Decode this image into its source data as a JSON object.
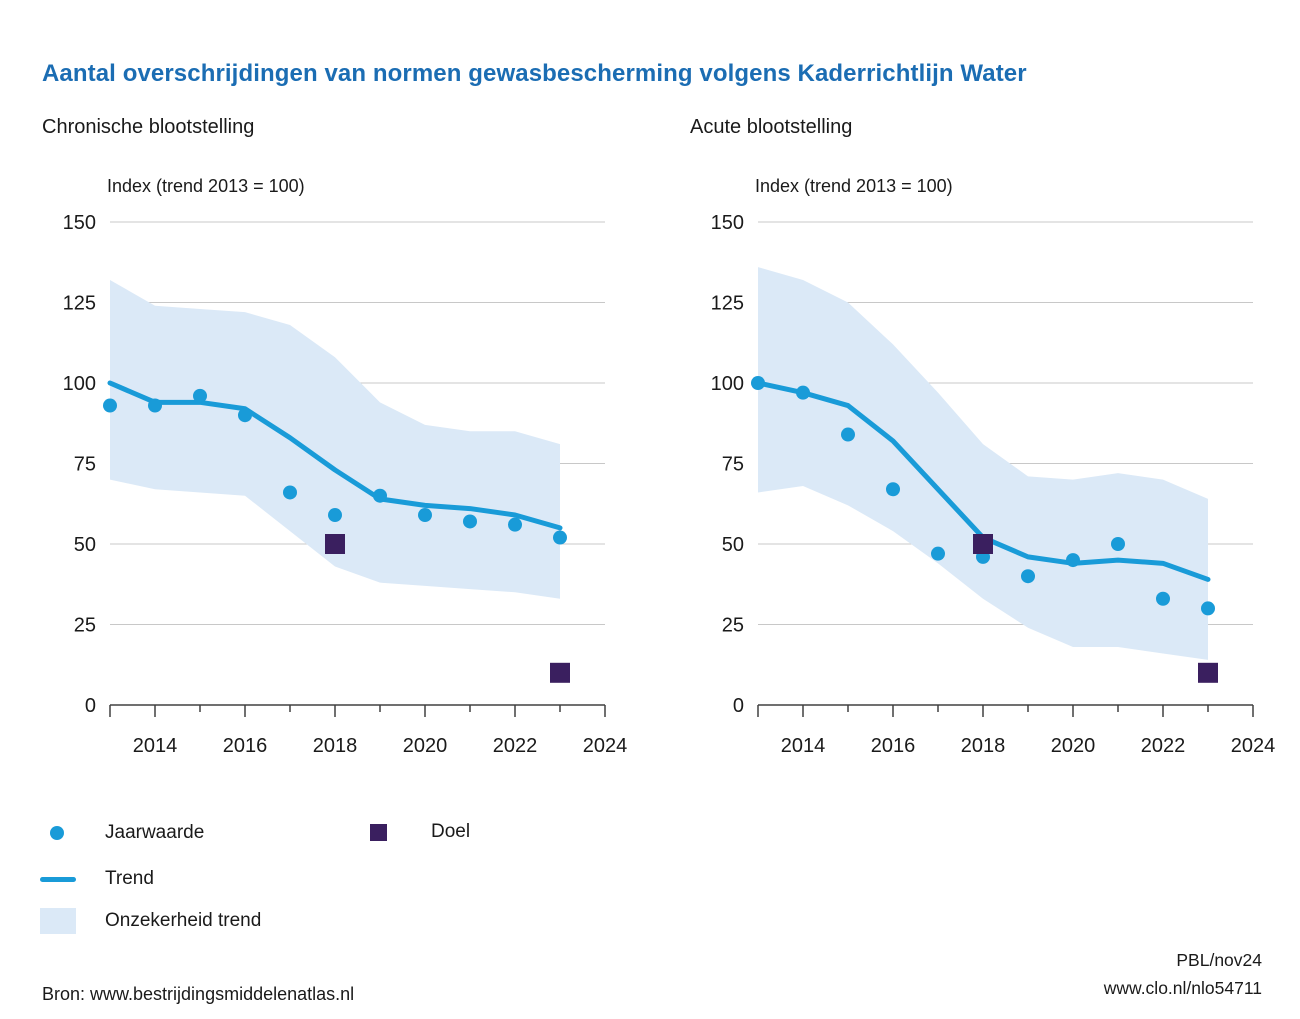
{
  "title": "Aantal overschrijdingen van normen gewasbescherming volgens Kaderrichtlijn Water",
  "colors": {
    "title": "#1b6db3",
    "series_blue": "#199bd8",
    "band": "#dbe9f7",
    "doel": "#3a1f5f",
    "text": "#1a1a1a",
    "grid": "#c8c8c8",
    "axis": "#404040"
  },
  "chart_data": [
    {
      "type": "line",
      "subtitle": "Chronische blootstelling",
      "ylabel": "Index (trend 2013 = 100)",
      "x": [
        2013,
        2014,
        2015,
        2016,
        2017,
        2018,
        2019,
        2020,
        2021,
        2022,
        2023
      ],
      "xlim": [
        2013,
        2024
      ],
      "ylim": [
        0,
        150
      ],
      "yticks": [
        0,
        25,
        50,
        75,
        100,
        125,
        150
      ],
      "xtick_labels": [
        2014,
        2016,
        2018,
        2020,
        2022,
        2024
      ],
      "grid": true,
      "series": [
        {
          "name": "Jaarwaarde",
          "type": "scatter",
          "values": [
            93,
            93,
            96,
            90,
            66,
            59,
            65,
            59,
            57,
            56,
            52
          ]
        },
        {
          "name": "Trend",
          "type": "line",
          "values": [
            100,
            94,
            94,
            92,
            83,
            73,
            64,
            62,
            61,
            59,
            55
          ]
        },
        {
          "name": "Onzekerheid trend",
          "type": "band",
          "upper": [
            132,
            124,
            123,
            122,
            118,
            108,
            94,
            87,
            85,
            85,
            81
          ],
          "lower": [
            70,
            67,
            66,
            65,
            54,
            43,
            38,
            37,
            36,
            35,
            33
          ]
        },
        {
          "name": "Doel",
          "type": "scatter_square",
          "points": [
            {
              "x": 2018,
              "y": 50
            },
            {
              "x": 2023,
              "y": 10
            }
          ]
        }
      ]
    },
    {
      "type": "line",
      "subtitle": "Acute blootstelling",
      "ylabel": "Index (trend 2013 = 100)",
      "x": [
        2013,
        2014,
        2015,
        2016,
        2017,
        2018,
        2019,
        2020,
        2021,
        2022,
        2023
      ],
      "xlim": [
        2013,
        2024
      ],
      "ylim": [
        0,
        150
      ],
      "yticks": [
        0,
        25,
        50,
        75,
        100,
        125,
        150
      ],
      "xtick_labels": [
        2014,
        2016,
        2018,
        2020,
        2022,
        2024
      ],
      "grid": true,
      "series": [
        {
          "name": "Jaarwaarde",
          "type": "scatter",
          "values": [
            100,
            97,
            84,
            67,
            47,
            46,
            40,
            45,
            50,
            33,
            30
          ]
        },
        {
          "name": "Trend",
          "type": "line",
          "values": [
            100,
            97,
            93,
            82,
            67,
            52,
            46,
            44,
            45,
            44,
            39
          ]
        },
        {
          "name": "Onzekerheid trend",
          "type": "band",
          "upper": [
            136,
            132,
            125,
            112,
            97,
            81,
            71,
            70,
            72,
            70,
            64
          ],
          "lower": [
            66,
            68,
            62,
            54,
            44,
            33,
            24,
            18,
            18,
            16,
            14
          ]
        },
        {
          "name": "Doel",
          "type": "scatter_square",
          "points": [
            {
              "x": 2018,
              "y": 50
            },
            {
              "x": 2023,
              "y": 10
            }
          ]
        }
      ]
    }
  ],
  "legend": {
    "items": [
      {
        "label": "Jaarwaarde",
        "marker": "dot"
      },
      {
        "label": "Doel",
        "marker": "square"
      },
      {
        "label": "Trend",
        "marker": "line"
      },
      {
        "label": "Onzekerheid trend",
        "marker": "area"
      }
    ]
  },
  "footer": {
    "source": "Bron: www.bestrijdingsmiddelenatlas.nl",
    "credit": "PBL/nov24",
    "url": "www.clo.nl/nlo54711"
  }
}
